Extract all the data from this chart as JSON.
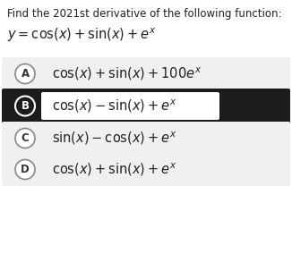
{
  "title": "Find the 2021st derivative of the following function:",
  "function": "$y = \\cos(x) + \\sin(x) + e^x$",
  "options": [
    {
      "label": "A",
      "text": "$\\cos(x) + \\sin(x) + 100e^x$",
      "selected": false
    },
    {
      "label": "B",
      "text": "$\\cos(x) - \\sin(x) + e^x$",
      "selected": true
    },
    {
      "label": "C",
      "text": "$\\sin(x) - \\cos(x) + e^x$",
      "selected": false
    },
    {
      "label": "D",
      "text": "$\\cos(x) + \\sin(x) + e^x$",
      "selected": false
    }
  ],
  "bg_color": "#ffffff",
  "selected_bg": "#1c1c1c",
  "option_bg_A": "#f0f0f0",
  "option_bg_C": "#f2f2f2",
  "option_bg_D": "#f2f2f2",
  "selected_box_bg": "#ffffff",
  "title_fontsize": 8.5,
  "func_fontsize": 10.5,
  "option_fontsize": 10.5,
  "label_fontsize": 8.5
}
